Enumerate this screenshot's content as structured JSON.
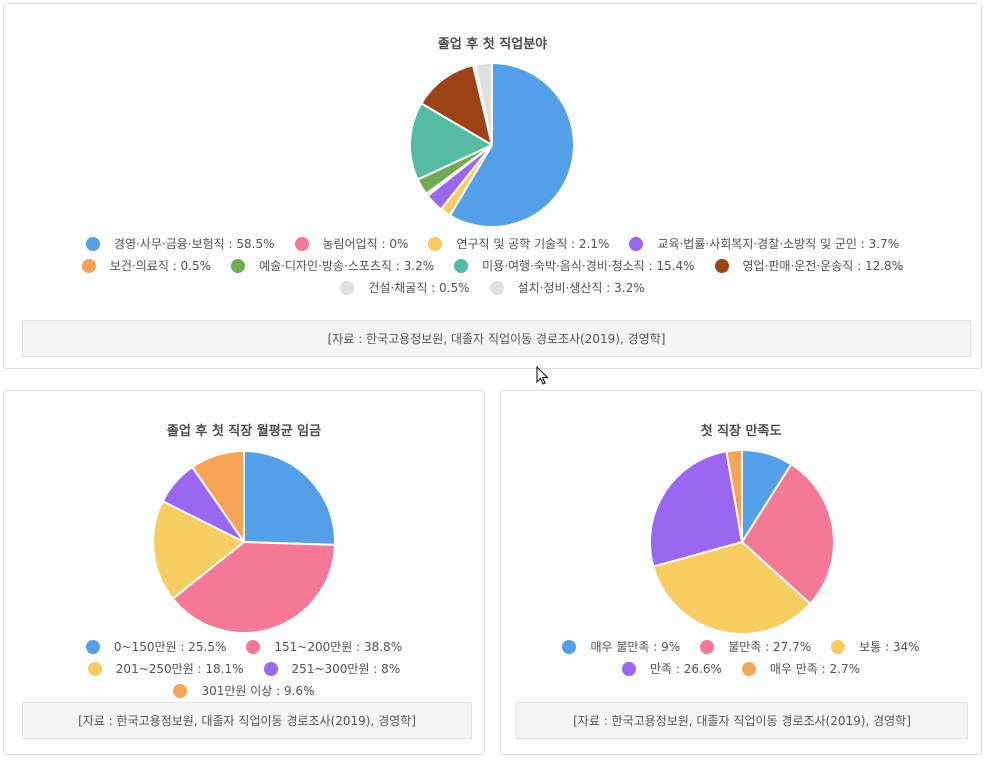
{
  "charts": {
    "job_field": {
      "source": "[자료 : 한국고용정보원, 대졸자 직업이동 경로조사(2019), 경영학]"
    },
    "wage": {
      "source": "[자료 : 한국고용정보원, 대졸자 직업이동 경로조사(2019), 경영학]"
    },
    "satisfaction": {
      "source": "[자료 : 한국고용정보원, 대졸자 직업이동 경로조사(2019), 경영학]"
    }
  },
  "chart_data": [
    {
      "type": "pie",
      "title": "졸업 후 첫 직업분야",
      "categories": [
        "경영·사무·금융·보험직",
        "농림어업직",
        "연구직 및 공학 기술직",
        "교육·법률·사회복지·경찰·소방직 및 군인",
        "보건·의료직",
        "예술·디자인·방송·스포츠직",
        "미용·여행·숙박·음식·경비·청소직",
        "영업·판매·운전·운송직",
        "건설·채굴직",
        "설치·정비·생산직"
      ],
      "values": [
        58.5,
        0,
        2.1,
        3.7,
        0.5,
        3.2,
        15.4,
        12.8,
        0.5,
        3.2
      ],
      "labels": [
        "경영·사무·금융·보험직 : 58.5%",
        "농림어업직 : 0%",
        "연구직 및 공학 기술직 : 2.1%",
        "교육·법률·사회복지·경찰·소방직 및 군인 : 3.7%",
        "보건·의료직 : 0.5%",
        "예술·디자인·방송·스포츠직 : 3.2%",
        "미용·여행·숙박·음식·경비·청소직 : 15.4%",
        "영업·판매·운전·운송직 : 12.8%",
        "건설·채굴직 : 0.5%",
        "설치·정비·생산직 : 3.2%"
      ],
      "colors": [
        "#539fe8",
        "#f57896",
        "#f7cd62",
        "#9b66f0",
        "#f7a355",
        "#6fab4f",
        "#55bba3",
        "#9c4318",
        "#e0e0e0",
        "#e0e0e0"
      ],
      "legend": "bottom"
    },
    {
      "type": "pie",
      "title": "졸업 후 첫 직장 월평균 임금",
      "categories": [
        "0~150만원",
        "151~200만원",
        "201~250만원",
        "251~300만원",
        "301만원 이상"
      ],
      "values": [
        25.5,
        38.8,
        18.1,
        8,
        9.6
      ],
      "labels": [
        "0~150만원 : 25.5%",
        "151~200만원 : 38.8%",
        "201~250만원 : 18.1%",
        "251~300만원 : 8%",
        "301만원 이상 : 9.6%"
      ],
      "colors": [
        "#539fe8",
        "#f57896",
        "#f7cd62",
        "#9b66f0",
        "#f7a355"
      ],
      "legend": "bottom"
    },
    {
      "type": "pie",
      "title": "첫 직장 만족도",
      "categories": [
        "매우 불만족",
        "불만족",
        "보통",
        "만족",
        "매우 만족"
      ],
      "values": [
        9,
        27.7,
        34,
        26.6,
        2.7
      ],
      "labels": [
        "매우 불만족 : 9%",
        "불만족 : 27.7%",
        "보통 : 34%",
        "만족 : 26.6%",
        "매우 만족 : 2.7%"
      ],
      "colors": [
        "#539fe8",
        "#f57896",
        "#f7cd62",
        "#9b66f0",
        "#f7a355"
      ],
      "legend": "bottom"
    }
  ]
}
